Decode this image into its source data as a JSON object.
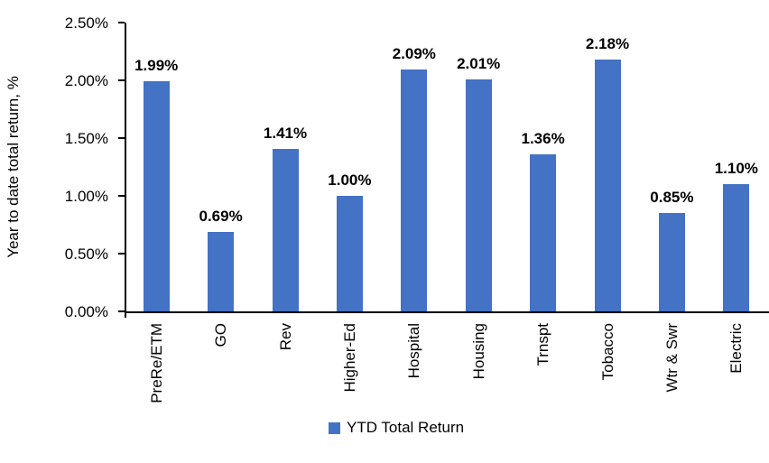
{
  "chart_data": {
    "type": "bar",
    "title": "",
    "categories": [
      "PreRe/ETM",
      "GO",
      "Rev",
      "Higher-Ed",
      "Hospital",
      "Housing",
      "Trnspt",
      "Tobacco",
      "Wtr & Swr",
      "Electric"
    ],
    "series": [
      {
        "name": "YTD Total Return",
        "values": [
          1.99,
          0.69,
          1.41,
          1.0,
          2.09,
          2.01,
          1.36,
          2.18,
          0.85,
          1.1
        ],
        "labels": [
          "1.99%",
          "0.69%",
          "1.41%",
          "1.00%",
          "2.09%",
          "2.01%",
          "1.36%",
          "2.18%",
          "0.85%",
          "1.10%"
        ]
      }
    ],
    "xlabel": "",
    "ylabel": "Year to date total return, %",
    "ylim": [
      0,
      2.5
    ],
    "yticks": {
      "values": [
        0,
        0.5,
        1.0,
        1.5,
        2.0,
        2.5
      ],
      "labels": [
        "0.00%",
        "0.50%",
        "1.00%",
        "1.50%",
        "2.00%",
        "2.50%"
      ]
    },
    "grid": "off",
    "legend": {
      "position": "bottom",
      "label": "YTD Total Return"
    },
    "colors": {
      "bar": "#4472C4",
      "axis": "#000000",
      "text": "#000000",
      "background": "#FFFFFF"
    }
  }
}
